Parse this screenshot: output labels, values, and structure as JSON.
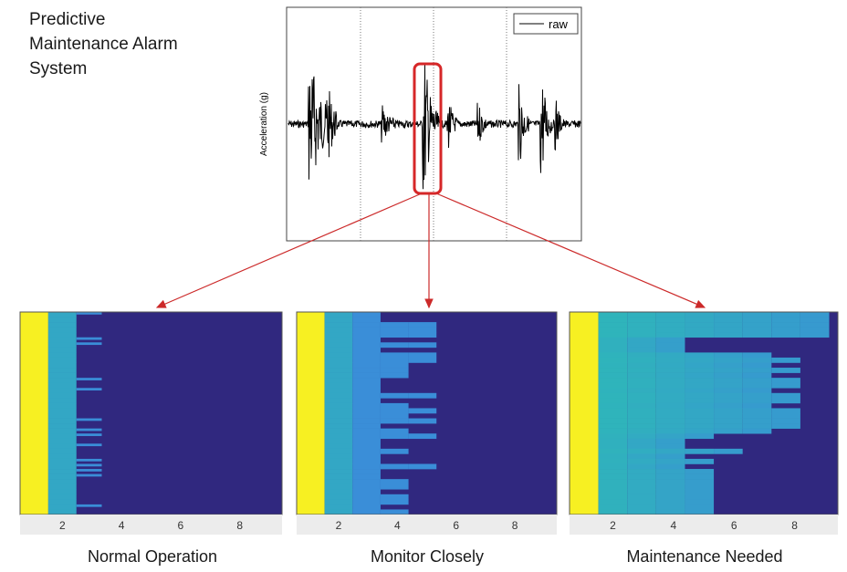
{
  "title": {
    "lines": [
      "Predictive",
      "Maintenance Alarm",
      "System"
    ]
  },
  "signal_plot": {
    "ylabel": "Acceleration (g)",
    "legend": "raw",
    "colors": {
      "signal": "#000000",
      "highlight": "#d62728",
      "arrow": "#cc2a2a"
    }
  },
  "panels": [
    {
      "caption": "Normal Operation",
      "ticks": [
        "2",
        "4",
        "6",
        "8"
      ]
    },
    {
      "caption": "Monitor Closely",
      "ticks": [
        "2",
        "4",
        "6",
        "8"
      ]
    },
    {
      "caption": "Maintenance Needed",
      "ticks": [
        "2",
        "4",
        "6",
        "8"
      ]
    }
  ],
  "colors": {
    "background": "#30287f",
    "high": "#f7f022",
    "mid": "#2eb8b8",
    "low": "#3a8ed8"
  }
}
